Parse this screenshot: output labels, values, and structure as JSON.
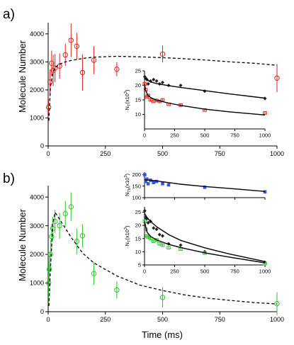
{
  "panels": {
    "a": {
      "label": "a)",
      "ylabel": "Molecule Number"
    },
    "b": {
      "label": "b)",
      "ylabel": "Molecule Number",
      "xlabel": "Time (ms)"
    }
  },
  "chart_data": [
    {
      "id": "a-main",
      "type": "scatter",
      "panel": "a",
      "ylabel": "Molecule Number",
      "xlim": [
        0,
        1000
      ],
      "ylim": [
        0,
        4400
      ],
      "xticks": [
        0,
        250,
        500,
        750,
        1000
      ],
      "yticks": [
        0,
        1000,
        2000,
        3000,
        4000
      ],
      "series": [
        {
          "kind": "points",
          "color": "#e02020",
          "marker": "open-circle",
          "x": [
            2,
            8,
            15,
            22,
            30,
            50,
            75,
            100,
            125,
            150,
            200,
            300,
            500,
            1000
          ],
          "y": [
            1380,
            2280,
            2950,
            2700,
            2780,
            2850,
            3250,
            3770,
            3560,
            2620,
            3060,
            2740,
            3280,
            2420
          ],
          "err": [
            300,
            450,
            450,
            550,
            500,
            450,
            400,
            600,
            480,
            650,
            500,
            250,
            300,
            500
          ]
        },
        {
          "kind": "fit",
          "style": "dashed",
          "color": "#000000",
          "x": [
            3,
            10,
            20,
            30,
            50,
            75,
            100,
            150,
            200,
            300,
            400,
            500,
            600,
            700,
            800,
            900,
            1000
          ],
          "y": [
            900,
            2100,
            2600,
            2800,
            2920,
            3000,
            3050,
            3120,
            3170,
            3200,
            3180,
            3150,
            3110,
            3060,
            3000,
            2950,
            2880
          ]
        }
      ]
    },
    {
      "id": "a-inset",
      "type": "scatter",
      "panel": "a",
      "ylabel": "N_T (x10^3)",
      "xlim": [
        0,
        1000
      ],
      "ylim": [
        5,
        25
      ],
      "xticks": [
        0,
        250,
        500,
        750,
        1000
      ],
      "yticks": [
        10,
        15,
        20,
        25
      ],
      "series": [
        {
          "kind": "points",
          "color": "#222222",
          "marker": "filled-diamond",
          "x": [
            2,
            10,
            20,
            30,
            50,
            75,
            100,
            125,
            150,
            200,
            300,
            500,
            1000
          ],
          "y": [
            23.0,
            22.5,
            22.0,
            20.5,
            21.5,
            22.0,
            21.5,
            20.5,
            21.0,
            20.0,
            20.0,
            18.0,
            15.5
          ],
          "err": [
            0.6,
            0.6,
            0.5,
            0.5,
            0.5,
            0.5,
            0.5,
            0.5,
            0.5,
            0.5,
            0.5,
            0.5,
            0.6
          ]
        },
        {
          "kind": "points",
          "color": "#e02020",
          "marker": "open-square",
          "x": [
            2,
            10,
            20,
            30,
            50,
            75,
            100,
            125,
            150,
            200,
            300,
            500,
            1000
          ],
          "y": [
            20.5,
            18.5,
            16.0,
            16.5,
            15.0,
            14.5,
            14.8,
            14.5,
            15.0,
            13.5,
            13.2,
            11.5,
            10.5
          ],
          "err": [
            0.6,
            0.6,
            0.5,
            0.5,
            0.5,
            0.5,
            0.5,
            0.5,
            0.5,
            0.5,
            0.5,
            0.5,
            0.5
          ]
        },
        {
          "kind": "fit",
          "style": "solid",
          "color": "#000000",
          "x": [
            0,
            20,
            50,
            100,
            200,
            300,
            500,
            700,
            1000
          ],
          "y": [
            22.5,
            21.9,
            21.2,
            20.6,
            19.9,
            19.3,
            18.2,
            17.1,
            15.6
          ]
        },
        {
          "kind": "fit",
          "style": "solid",
          "color": "#000000",
          "x": [
            0,
            10,
            25,
            50,
            100,
            200,
            300,
            500,
            700,
            1000
          ],
          "y": [
            20.5,
            18.2,
            16.8,
            15.8,
            14.9,
            13.9,
            13.1,
            11.8,
            10.9,
            9.8
          ]
        }
      ]
    },
    {
      "id": "b-main",
      "type": "scatter",
      "panel": "b",
      "xlabel": "Time (ms)",
      "ylabel": "Molecule Number",
      "xlim": [
        0,
        1000
      ],
      "ylim": [
        0,
        4400
      ],
      "xticks": [
        0,
        250,
        500,
        750,
        1000
      ],
      "yticks": [
        0,
        1000,
        2000,
        3000,
        4000
      ],
      "series": [
        {
          "kind": "points",
          "color": "#30c030",
          "marker": "open-circle",
          "x": [
            2,
            5,
            10,
            15,
            20,
            30,
            50,
            75,
            100,
            125,
            150,
            200,
            300,
            500,
            1000
          ],
          "y": [
            1000,
            1480,
            2000,
            2620,
            2900,
            3150,
            3000,
            3420,
            3660,
            2450,
            2650,
            1330,
            760,
            500,
            280
          ],
          "err": [
            750,
            600,
            500,
            450,
            400,
            400,
            450,
            450,
            500,
            450,
            400,
            400,
            300,
            350,
            400
          ]
        },
        {
          "kind": "fit",
          "style": "dashed",
          "color": "#000000",
          "x": [
            3,
            10,
            20,
            30,
            40,
            60,
            100,
            150,
            200,
            300,
            400,
            500,
            600,
            700,
            800,
            900,
            1000
          ],
          "y": [
            200,
            1500,
            3050,
            3460,
            3350,
            3100,
            2600,
            2050,
            1700,
            1250,
            930,
            740,
            580,
            470,
            390,
            320,
            270
          ]
        }
      ]
    },
    {
      "id": "b-inset-top",
      "type": "scatter",
      "panel": "b",
      "ylabel": "N_Tb (x10^3)",
      "xlim": [
        0,
        1000
      ],
      "ylim": [
        100,
        210
      ],
      "xticks": [
        0,
        250,
        500,
        750,
        1000
      ],
      "yticks": [
        100,
        150,
        200
      ],
      "series": [
        {
          "kind": "points",
          "color": "#3355dd",
          "marker": "filled-square",
          "x": [
            2,
            10,
            20,
            30,
            50,
            75,
            100,
            150,
            200,
            500,
            1000
          ],
          "y": [
            199,
            170,
            180,
            160,
            175,
            165,
            170,
            160,
            155,
            145,
            125
          ],
          "err": [
            5,
            5,
            5,
            6,
            5,
            5,
            5,
            5,
            5,
            4,
            4
          ]
        },
        {
          "kind": "fit",
          "style": "solid",
          "color": "#000000",
          "x": [
            0,
            50,
            100,
            200,
            300,
            500,
            700,
            1000
          ],
          "y": [
            177,
            175,
            172,
            165,
            158,
            148,
            140,
            127
          ]
        }
      ]
    },
    {
      "id": "b-inset-bottom",
      "type": "scatter",
      "panel": "b",
      "ylabel": "N_T (x10^3)",
      "xlim": [
        0,
        1000
      ],
      "ylim": [
        5,
        27
      ],
      "xticks": [
        0,
        250,
        500,
        750,
        1000
      ],
      "yticks": [
        5,
        10,
        15,
        20,
        25
      ],
      "series": [
        {
          "kind": "points",
          "color": "#222222",
          "marker": "filled-diamond",
          "x": [
            2,
            10,
            20,
            30,
            50,
            75,
            100,
            125,
            150,
            200,
            300,
            500,
            1000
          ],
          "y": [
            25.5,
            23.0,
            22.5,
            21.0,
            21.5,
            19.0,
            18.5,
            16.5,
            16.0,
            13.0,
            12.5,
            10.0,
            6.0
          ],
          "err": [
            0.8,
            0.8,
            0.7,
            0.7,
            0.7,
            0.6,
            0.6,
            0.6,
            0.6,
            0.6,
            0.6,
            0.6,
            0.6
          ]
        },
        {
          "kind": "points",
          "color": "#30c030",
          "marker": "open-square",
          "x": [
            2,
            10,
            20,
            30,
            50,
            75,
            100,
            125,
            150,
            200,
            300,
            500,
            1000
          ],
          "y": [
            21.5,
            18.5,
            16.0,
            15.5,
            15.0,
            14.0,
            14.5,
            13.0,
            12.5,
            11.5,
            11.0,
            9.5,
            5.5
          ],
          "err": [
            0.7,
            0.7,
            0.6,
            0.6,
            0.6,
            0.6,
            0.6,
            0.6,
            0.6,
            0.6,
            0.6,
            0.6,
            0.5
          ]
        },
        {
          "kind": "fit",
          "style": "solid",
          "color": "#000000",
          "x": [
            0,
            20,
            50,
            100,
            200,
            300,
            500,
            700,
            1000
          ],
          "y": [
            24.5,
            23.0,
            21.5,
            19.5,
            16.5,
            14.3,
            11.5,
            9.2,
            6.3
          ]
        },
        {
          "kind": "fit",
          "style": "solid",
          "color": "#000000",
          "x": [
            0,
            20,
            50,
            100,
            200,
            300,
            500,
            700,
            1000
          ],
          "y": [
            21.5,
            17.5,
            15.8,
            14.5,
            12.8,
            11.6,
            9.6,
            8.0,
            5.8
          ]
        }
      ]
    }
  ]
}
